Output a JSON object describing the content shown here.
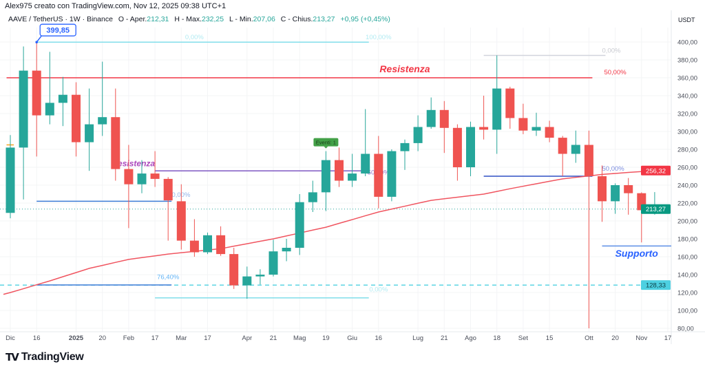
{
  "header": {
    "credit": "Alex975 creato con TradingView.com, Nov 12, 2025 09:38 UTC+1",
    "symbol": "AAVE / TetherUS · 1W · Binance",
    "open_label": "O - Aper.",
    "open": "212,31",
    "high_label": "H - Max.",
    "high": "232,25",
    "low_label": "L - Min.",
    "low": "207,06",
    "close_label": "C - Chius.",
    "close": "213,27",
    "change": "+0,95 (+0,45%)"
  },
  "logo": {
    "text": "TradingView",
    "mark": "TV"
  },
  "colors": {
    "up": "#26a69a",
    "down": "#ef5350",
    "ma": "#f0545f",
    "resistance": "#f23645",
    "fib": "#80deea",
    "blue": "#3a6fd8",
    "purple": "#7e57c2",
    "grey": "#b2b5be"
  },
  "chart_data": {
    "type": "candlestick",
    "currency": "USDT",
    "ylim": [
      80,
      400
    ],
    "yticks": [
      "400,00",
      "380,00",
      "360,00",
      "340,00",
      "320,00",
      "300,00",
      "280,00",
      "260,00",
      "240,00",
      "220,00",
      "200,00",
      "180,00",
      "160,00",
      "140,00",
      "120,00",
      "100,00",
      "80,00"
    ],
    "ytick_values": [
      400,
      380,
      360,
      340,
      320,
      300,
      280,
      260,
      240,
      220,
      200,
      180,
      160,
      140,
      120,
      100,
      80
    ],
    "xticks": [
      {
        "label": "Dic",
        "date": "2024-12-02"
      },
      {
        "label": "16",
        "date": "2024-12-16"
      },
      {
        "label": "2025",
        "date": "2025-01-06",
        "bold": true
      },
      {
        "label": "20",
        "date": "2025-01-20"
      },
      {
        "label": "Feb",
        "date": "2025-02-03"
      },
      {
        "label": "17",
        "date": "2025-02-17"
      },
      {
        "label": "Mar",
        "date": "2025-03-03"
      },
      {
        "label": "17",
        "date": "2025-03-17"
      },
      {
        "label": "Apr",
        "date": "2025-04-07"
      },
      {
        "label": "21",
        "date": "2025-04-21"
      },
      {
        "label": "Mag",
        "date": "2025-05-05"
      },
      {
        "label": "19",
        "date": "2025-05-19"
      },
      {
        "label": "Giu",
        "date": "2025-06-02"
      },
      {
        "label": "16",
        "date": "2025-06-16"
      },
      {
        "label": "Lug",
        "date": "2025-07-07"
      },
      {
        "label": "21",
        "date": "2025-07-21"
      },
      {
        "label": "Ago",
        "date": "2025-08-04"
      },
      {
        "label": "18",
        "date": "2025-08-18"
      },
      {
        "label": "Set",
        "date": "2025-09-01"
      },
      {
        "label": "15",
        "date": "2025-09-15"
      },
      {
        "label": "Ott",
        "date": "2025-10-06"
      },
      {
        "label": "20",
        "date": "2025-10-20"
      },
      {
        "label": "Nov",
        "date": "2025-11-03"
      },
      {
        "label": "17",
        "date": "2025-11-17"
      }
    ],
    "candles": [
      {
        "date": "2024-12-02",
        "o": 209,
        "h": 296,
        "l": 203,
        "c": 282
      },
      {
        "date": "2024-12-09",
        "o": 282,
        "h": 395,
        "l": 224,
        "c": 368
      },
      {
        "date": "2024-12-16",
        "o": 368,
        "h": 399.85,
        "l": 272,
        "c": 318
      },
      {
        "date": "2024-12-23",
        "o": 318,
        "h": 389,
        "l": 308,
        "c": 332
      },
      {
        "date": "2024-12-30",
        "o": 332,
        "h": 361,
        "l": 306,
        "c": 341
      },
      {
        "date": "2025-01-06",
        "o": 341,
        "h": 355,
        "l": 272,
        "c": 288
      },
      {
        "date": "2025-01-13",
        "o": 288,
        "h": 348,
        "l": 256,
        "c": 308
      },
      {
        "date": "2025-01-20",
        "o": 308,
        "h": 378,
        "l": 295,
        "c": 316
      },
      {
        "date": "2025-01-27",
        "o": 316,
        "h": 348,
        "l": 245,
        "c": 258
      },
      {
        "date": "2025-02-03",
        "o": 258,
        "h": 285,
        "l": 192,
        "c": 241
      },
      {
        "date": "2025-02-10",
        "o": 241,
        "h": 268,
        "l": 231,
        "c": 253
      },
      {
        "date": "2025-02-17",
        "o": 253,
        "h": 278,
        "l": 238,
        "c": 247
      },
      {
        "date": "2025-02-24",
        "o": 247,
        "h": 249,
        "l": 178,
        "c": 223
      },
      {
        "date": "2025-03-03",
        "o": 222,
        "h": 241,
        "l": 168,
        "c": 178
      },
      {
        "date": "2025-03-10",
        "o": 178,
        "h": 202,
        "l": 160,
        "c": 165
      },
      {
        "date": "2025-03-17",
        "o": 165,
        "h": 187,
        "l": 163,
        "c": 184
      },
      {
        "date": "2025-03-24",
        "o": 184,
        "h": 194,
        "l": 161,
        "c": 163
      },
      {
        "date": "2025-03-31",
        "o": 163,
        "h": 170,
        "l": 124,
        "c": 128
      },
      {
        "date": "2025-04-07",
        "o": 128,
        "h": 149,
        "l": 113,
        "c": 138
      },
      {
        "date": "2025-04-14",
        "o": 138,
        "h": 146,
        "l": 129,
        "c": 140
      },
      {
        "date": "2025-04-21",
        "o": 140,
        "h": 179,
        "l": 138,
        "c": 166
      },
      {
        "date": "2025-04-28",
        "o": 166,
        "h": 180,
        "l": 155,
        "c": 170
      },
      {
        "date": "2025-05-05",
        "o": 170,
        "h": 230,
        "l": 162,
        "c": 221
      },
      {
        "date": "2025-05-12",
        "o": 221,
        "h": 245,
        "l": 210,
        "c": 232
      },
      {
        "date": "2025-05-19",
        "o": 232,
        "h": 278,
        "l": 211,
        "c": 268
      },
      {
        "date": "2025-05-26",
        "o": 268,
        "h": 282,
        "l": 238,
        "c": 245
      },
      {
        "date": "2025-06-02",
        "o": 245,
        "h": 275,
        "l": 238,
        "c": 253
      },
      {
        "date": "2025-06-09",
        "o": 253,
        "h": 325,
        "l": 250,
        "c": 275
      },
      {
        "date": "2025-06-16",
        "o": 275,
        "h": 295,
        "l": 214,
        "c": 227
      },
      {
        "date": "2025-06-23",
        "o": 227,
        "h": 280,
        "l": 222,
        "c": 278
      },
      {
        "date": "2025-06-30",
        "o": 278,
        "h": 291,
        "l": 257,
        "c": 287
      },
      {
        "date": "2025-07-07",
        "o": 287,
        "h": 318,
        "l": 278,
        "c": 305
      },
      {
        "date": "2025-07-14",
        "o": 305,
        "h": 338,
        "l": 303,
        "c": 324
      },
      {
        "date": "2025-07-21",
        "o": 324,
        "h": 334,
        "l": 276,
        "c": 304
      },
      {
        "date": "2025-07-28",
        "o": 304,
        "h": 308,
        "l": 245,
        "c": 260
      },
      {
        "date": "2025-08-04",
        "o": 260,
        "h": 311,
        "l": 250,
        "c": 305
      },
      {
        "date": "2025-08-11",
        "o": 305,
        "h": 340,
        "l": 291,
        "c": 302
      },
      {
        "date": "2025-08-18",
        "o": 302,
        "h": 385,
        "l": 275,
        "c": 348
      },
      {
        "date": "2025-08-25",
        "o": 348,
        "h": 350,
        "l": 303,
        "c": 315
      },
      {
        "date": "2025-09-01",
        "o": 315,
        "h": 331,
        "l": 297,
        "c": 301
      },
      {
        "date": "2025-09-08",
        "o": 301,
        "h": 321,
        "l": 295,
        "c": 305
      },
      {
        "date": "2025-09-15",
        "o": 305,
        "h": 312,
        "l": 288,
        "c": 293
      },
      {
        "date": "2025-09-22",
        "o": 293,
        "h": 295,
        "l": 250,
        "c": 275
      },
      {
        "date": "2025-09-29",
        "o": 275,
        "h": 301,
        "l": 265,
        "c": 285
      },
      {
        "date": "2025-10-06",
        "o": 285,
        "h": 301,
        "l": 80,
        "c": 250
      },
      {
        "date": "2025-10-13",
        "o": 250,
        "h": 262,
        "l": 199,
        "c": 222
      },
      {
        "date": "2025-10-20",
        "o": 222,
        "h": 242,
        "l": 208,
        "c": 240
      },
      {
        "date": "2025-10-27",
        "o": 240,
        "h": 248,
        "l": 207,
        "c": 231
      },
      {
        "date": "2025-11-03",
        "o": 231,
        "h": 232,
        "l": 176,
        "c": 212
      },
      {
        "date": "2025-11-10",
        "o": 212.31,
        "h": 232.25,
        "l": 207.06,
        "c": 213.27
      }
    ],
    "moving_average": [
      120,
      124.3,
      128.7,
      133,
      137.7,
      142.3,
      147,
      150.3,
      153.7,
      157,
      159,
      161,
      163,
      164.5,
      166,
      167.5,
      169,
      171.8,
      174.5,
      177.3,
      180,
      183.3,
      186.5,
      189.8,
      193,
      197.3,
      201.5,
      205.8,
      210,
      213.3,
      216.5,
      219.8,
      223,
      224.8,
      226.5,
      228.3,
      230,
      233,
      236,
      238.8,
      241.5,
      244.3,
      247,
      248.7,
      250.3,
      252,
      253.1,
      254.2,
      255.2,
      256.32
    ],
    "price_labels": [
      {
        "text": "256,32",
        "value": 256.32,
        "color": "#f23645"
      },
      {
        "text": "213,27",
        "value": 213.27,
        "color": "#089981"
      },
      {
        "text": "128,33",
        "value": 128.33,
        "color": "#4dd0e1",
        "dark": true
      }
    ],
    "last_price": 213.27,
    "annotations": {
      "high_callout": {
        "text": "399,85",
        "date": "2024-12-16",
        "price": 399.85
      },
      "event_marker": {
        "text": "Eventi: 1",
        "date": "2025-05-19"
      },
      "lines": [
        {
          "price": 399.85,
          "from": "2024-12-16",
          "to": "2025-06-09",
          "color": "#80deea",
          "labels": [
            {
              "text": "0,00%",
              "date": "2025-03-10",
              "price": 403,
              "anchor": "middle",
              "color": "#b2ebf2"
            },
            {
              "text": "100,00%",
              "date": "2025-06-16",
              "price": 403,
              "anchor": "middle",
              "color": "#b2ebf2"
            }
          ]
        },
        {
          "price": 360,
          "from": "2024-11-30",
          "to": "2025-10-06",
          "color": "#f23645",
          "labels": [
            {
              "text": "Resistenza",
              "date": "2025-06-30",
              "price": 366,
              "anchor": "middle",
              "color": "#f23645",
              "big": true
            },
            {
              "text": "50,00%",
              "date": "2025-10-20",
              "price": 364,
              "anchor": "middle",
              "color": "#f23645"
            }
          ]
        },
        {
          "price": 385,
          "from": "2025-08-11",
          "to": "2025-10-13",
          "color": "#d1d4dc",
          "labels": [
            {
              "text": "0,00%",
              "date": "2025-10-13",
              "price": 388,
              "anchor": "start",
              "color": "#c8cad0"
            }
          ]
        },
        {
          "price": 256,
          "from": "2025-02-17",
          "to": "2025-06-09",
          "color": "#7e57c2",
          "labels": [
            {
              "text": "Resistenza",
              "date": "2025-02-17",
              "price": 261,
              "anchor": "end",
              "color": "#ab47bc",
              "big": true,
              "small": true
            },
            {
              "text": "50,00%",
              "date": "2025-06-16",
              "price": 252,
              "anchor": "middle",
              "color": "#9575cd"
            }
          ]
        },
        {
          "price": 222,
          "from": "2024-12-16",
          "to": "2025-02-24",
          "color": "#3a7bd5",
          "labels": [
            {
              "text": "50,00%",
              "date": "2025-02-24",
              "price": 227,
              "anchor": "start",
              "color": "#90b4ea"
            }
          ]
        },
        {
          "price": 128.5,
          "from": "2024-12-16",
          "to": "2025-02-24",
          "color": "#3a7bd5",
          "labels": [
            {
              "text": "76,40%",
              "date": "2025-02-24",
              "price": 135,
              "anchor": "middle",
              "color": "#64b5f6"
            }
          ]
        },
        {
          "price": 114,
          "from": "2025-02-17",
          "to": "2025-06-09",
          "color": "#80deea",
          "labels": [
            {
              "text": "0,00%",
              "date": "2025-06-16",
              "price": 121,
              "anchor": "middle",
              "color": "#b2ebf2"
            }
          ]
        },
        {
          "price": 250,
          "from": "2025-08-11",
          "to": "2025-10-06",
          "color": "#2f4fc4",
          "labels": [
            {
              "text": "50,00%",
              "date": "2025-10-13",
              "price": 256,
              "anchor": "start",
              "color": "#7e8fe0"
            }
          ]
        },
        {
          "price": 172,
          "from": "2025-10-13",
          "to": "2025-11-17",
          "color": "#5b8ee6",
          "labels": [
            {
              "text": "Supporto",
              "date": "2025-10-20",
              "price": 160,
              "anchor": "start",
              "color": "#2962ff",
              "big": true
            }
          ]
        },
        {
          "price": 285,
          "from": "2024-11-30",
          "to": "2024-12-02",
          "color": "#f7a21b",
          "labels": []
        }
      ],
      "dashed_level": {
        "price": 128.33,
        "color": "#4dd0e1"
      }
    }
  }
}
